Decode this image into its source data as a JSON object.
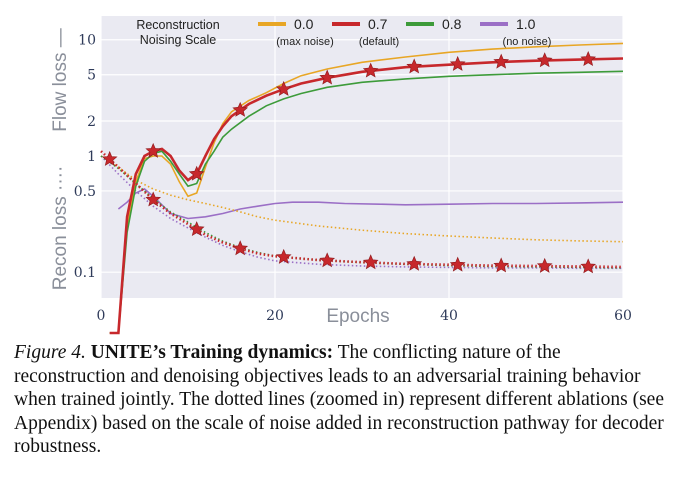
{
  "chart_data": {
    "type": "line",
    "xlabel": "Epochs",
    "ylabel_flow": "Flow loss —",
    "ylabel_recon": "Recon loss ····",
    "x_ticks": [
      0,
      20,
      40,
      60
    ],
    "y_ticks": [
      {
        "value": 10,
        "label": "10"
      },
      {
        "value": 5,
        "label": "5"
      },
      {
        "value": 2,
        "label": "2"
      },
      {
        "value": 1,
        "label": "1"
      },
      {
        "value": 0.5,
        "label": "0.5"
      },
      {
        "value": 0.1,
        "label": "0.1"
      }
    ],
    "xlim": [
      0,
      60
    ],
    "ylim": [
      0.06,
      16
    ],
    "yscale": "log",
    "grid": true,
    "legend_title": [
      "Reconstruction",
      "Noising Scale"
    ],
    "legend_placement": "top",
    "series": [
      {
        "name": "0.0",
        "note": "(max noise)",
        "color": "#e8a625",
        "flow": {
          "x": [
            1,
            2,
            3,
            4,
            5,
            6,
            7,
            8,
            9,
            10,
            11,
            12,
            13,
            14,
            15,
            17,
            19,
            21,
            23,
            26,
            30,
            35,
            40,
            45,
            50,
            55,
            60
          ],
          "y": [
            0.03,
            0.03,
            0.25,
            0.6,
            0.95,
            1.0,
            1.0,
            0.85,
            0.6,
            0.45,
            0.48,
            0.8,
            1.3,
            1.9,
            2.4,
            3.0,
            3.5,
            4.2,
            4.9,
            5.6,
            6.4,
            7.1,
            7.8,
            8.3,
            8.7,
            9.0,
            9.3
          ]
        },
        "recon": {
          "x": [
            0,
            2,
            4,
            6,
            8,
            10,
            12,
            14,
            16,
            18,
            20,
            25,
            30,
            35,
            40,
            45,
            50,
            55,
            60
          ],
          "y": [
            1.0,
            0.8,
            0.62,
            0.52,
            0.46,
            0.42,
            0.39,
            0.36,
            0.33,
            0.3,
            0.28,
            0.25,
            0.23,
            0.215,
            0.205,
            0.197,
            0.19,
            0.186,
            0.183
          ]
        }
      },
      {
        "name": "0.7",
        "note": "(default)",
        "color": "#c7282c",
        "flow": {
          "x": [
            1,
            2,
            3,
            4,
            5,
            6,
            7,
            8,
            9,
            10,
            11,
            12,
            13,
            14,
            15,
            17,
            19,
            21,
            23,
            26,
            30,
            35,
            40,
            45,
            50,
            55,
            60
          ],
          "y": [
            0.03,
            0.03,
            0.3,
            0.7,
            1.0,
            1.1,
            1.15,
            1.0,
            0.75,
            0.62,
            0.7,
            1.0,
            1.4,
            1.8,
            2.2,
            2.8,
            3.3,
            3.75,
            4.2,
            4.7,
            5.3,
            5.8,
            6.1,
            6.4,
            6.6,
            6.75,
            6.9
          ]
        },
        "recon": {
          "x": [
            0,
            2,
            4,
            6,
            8,
            10,
            12,
            14,
            16,
            18,
            20,
            25,
            30,
            35,
            40,
            45,
            50,
            55,
            60
          ],
          "y": [
            1.1,
            0.8,
            0.58,
            0.42,
            0.32,
            0.26,
            0.21,
            0.18,
            0.16,
            0.145,
            0.137,
            0.127,
            0.122,
            0.118,
            0.116,
            0.114,
            0.113,
            0.112,
            0.111
          ]
        },
        "markers_flow_x": [
          6,
          11,
          16,
          21,
          26,
          31,
          36,
          41,
          46,
          51,
          56
        ],
        "markers_recon_x": [
          1,
          6,
          11,
          16,
          21,
          26,
          31,
          36,
          41,
          46,
          51,
          56
        ]
      },
      {
        "name": "0.8",
        "note": "",
        "color": "#3d9b3a",
        "flow": {
          "x": [
            1,
            2,
            3,
            4,
            5,
            6,
            7,
            8,
            9,
            10,
            11,
            12,
            13,
            14,
            15,
            17,
            19,
            21,
            23,
            26,
            30,
            35,
            40,
            45,
            50,
            55,
            60
          ],
          "y": [
            0.03,
            0.03,
            0.22,
            0.55,
            0.9,
            1.05,
            1.1,
            0.9,
            0.7,
            0.55,
            0.58,
            0.85,
            1.1,
            1.45,
            1.7,
            2.2,
            2.7,
            3.1,
            3.45,
            3.9,
            4.3,
            4.6,
            4.85,
            5.0,
            5.15,
            5.25,
            5.35
          ]
        },
        "recon": {
          "x": [
            0,
            2,
            4,
            6,
            8,
            10,
            12,
            14,
            16,
            18,
            20,
            25,
            30,
            35,
            40,
            45,
            50,
            55,
            60
          ],
          "y": [
            1.0,
            0.78,
            0.58,
            0.43,
            0.33,
            0.27,
            0.22,
            0.185,
            0.163,
            0.148,
            0.138,
            0.127,
            0.121,
            0.117,
            0.114,
            0.112,
            0.111,
            0.11,
            0.109
          ]
        }
      },
      {
        "name": "1.0",
        "note": "(no noise)",
        "color": "#9b6fc6",
        "flow": {
          "x": [],
          "y": []
        },
        "recon": {
          "x": [
            0,
            2,
            4,
            6,
            8,
            10,
            12,
            14,
            16,
            18,
            20,
            25,
            30,
            35,
            40,
            45,
            50,
            55,
            60
          ],
          "y": [
            1.0,
            0.7,
            0.5,
            0.37,
            0.29,
            0.24,
            0.2,
            0.17,
            0.15,
            0.135,
            0.125,
            0.117,
            0.113,
            0.111,
            0.11,
            0.109,
            0.109,
            0.108,
            0.108
          ]
        },
        "recon_solid": {
          "x": [
            2,
            3,
            4,
            5,
            6,
            7,
            8,
            10,
            12,
            14,
            16,
            18,
            20,
            22,
            25,
            28,
            32,
            35,
            40,
            45,
            50,
            55,
            60
          ],
          "y": [
            0.35,
            0.4,
            0.48,
            0.52,
            0.45,
            0.38,
            0.32,
            0.29,
            0.3,
            0.32,
            0.35,
            0.37,
            0.39,
            0.4,
            0.4,
            0.39,
            0.385,
            0.38,
            0.385,
            0.39,
            0.39,
            0.395,
            0.4
          ]
        }
      }
    ]
  },
  "caption": {
    "fig_label": "Figure 4.",
    "bold_title": "UNITE’s Training dynamics:",
    "body": "The conflicting nature of the reconstruction and denoising objectives leads to an adversarial training behavior when trained jointly. The dotted lines (zoomed in) represent different ablations (see Appendix) based on the scale of noise added in reconstruction pathway for decoder robustness."
  }
}
